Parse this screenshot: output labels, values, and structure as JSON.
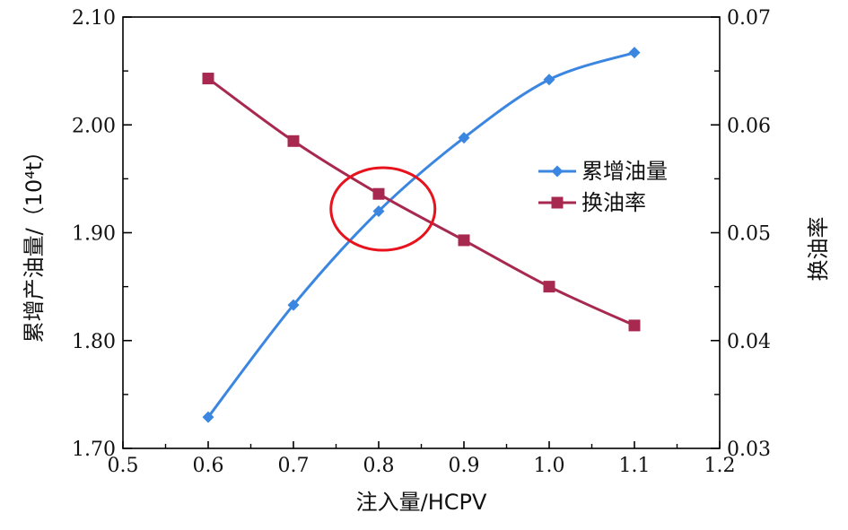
{
  "chart_data": {
    "type": "line",
    "xlabel": "注入量/HCPV",
    "ylabel_left": "累增产油量/（10⁴t）",
    "ylabel_right": "换油率",
    "x_ticks": [
      "0.5",
      "0.6",
      "0.7",
      "0.8",
      "0.9",
      "1.0",
      "1.1",
      "1.2"
    ],
    "y_left_ticks": [
      "1.70",
      "1.80",
      "1.90",
      "2.00",
      "2.10"
    ],
    "y_right_ticks": [
      "0.03",
      "0.04",
      "0.05",
      "0.06",
      "0.07"
    ],
    "xlim": [
      0.5,
      1.2
    ],
    "ylim_left": [
      1.7,
      2.1
    ],
    "ylim_right": [
      0.03,
      0.07
    ],
    "x": [
      0.6,
      0.7,
      0.8,
      0.9,
      1.0,
      1.1
    ],
    "series": [
      {
        "name": "累增油量",
        "axis": "left",
        "color": "#3b86e0",
        "marker": "diamond",
        "values": [
          1.729,
          1.833,
          1.92,
          1.988,
          2.042,
          2.067
        ]
      },
      {
        "name": "换油率",
        "axis": "right",
        "color": "#a8294f",
        "marker": "square",
        "values": [
          0.0643,
          0.0585,
          0.0536,
          0.0493,
          0.045,
          0.0414
        ]
      }
    ],
    "annotation": {
      "shape": "ellipse",
      "color": "#e8121d",
      "center_x": 0.805,
      "center_y_left": 1.922
    },
    "legend_position": "right-middle",
    "grid": false
  }
}
